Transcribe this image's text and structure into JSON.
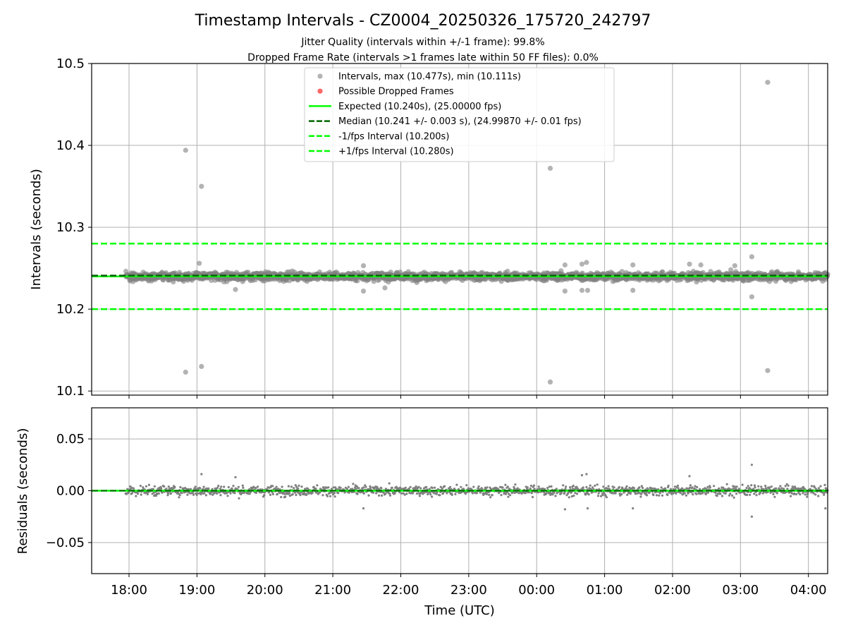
{
  "title": "Timestamp Intervals - CZ0004_20250326_175720_242797",
  "subtitle_1": "Jitter Quality (intervals within +/-1 frame): 99.8%",
  "subtitle_2": "Dropped Frame Rate (intervals >1 frames late within 50 FF files): 0.0%",
  "colors": {
    "points": "#808080",
    "dropped": "#ff0000",
    "expected": "#00ff00",
    "median": "#006400",
    "bounds": "#00ff00",
    "grid": "#b0b0b0"
  },
  "chart_data": [
    {
      "type": "scatter",
      "ylabel": "Intervals (seconds)",
      "ylim": [
        10.095,
        10.5
      ],
      "yticks": [
        10.1,
        10.2,
        10.3,
        10.4,
        10.5
      ],
      "ytick_labels": [
        "10.1",
        "10.2",
        "10.3",
        "10.4",
        "10.5"
      ],
      "grid": true,
      "legend_position": "top-center",
      "legend": [
        {
          "label": "Intervals, max (10.477s), min (10.111s)",
          "kind": "marker",
          "color": "#808080"
        },
        {
          "label": "Possible Dropped Frames",
          "kind": "marker",
          "color": "#ff0000"
        },
        {
          "label": "Expected (10.240s), (25.00000 fps)",
          "kind": "solid",
          "color": "#00ff00"
        },
        {
          "label": "Median (10.241 +/- 0.003 s), (24.99870 +/- 0.01 fps)",
          "kind": "dashed",
          "color": "#006400"
        },
        {
          "label": "-1/fps Interval (10.200s)",
          "kind": "dashed",
          "color": "#00ff00"
        },
        {
          "label": "+1/fps Interval (10.280s)",
          "kind": "dashed",
          "color": "#00ff00"
        }
      ],
      "reference_lines": {
        "expected": 10.24,
        "median": 10.241,
        "lower": 10.2,
        "upper": 10.28
      },
      "baseline": {
        "center": 10.24,
        "spread": 0.005,
        "count": 2400
      },
      "outliers": [
        {
          "x": "18:50",
          "y": 10.394
        },
        {
          "x": "18:50",
          "y": 10.123
        },
        {
          "x": "19:04",
          "y": 10.35
        },
        {
          "x": "19:04",
          "y": 10.13
        },
        {
          "x": "19:02",
          "y": 10.256
        },
        {
          "x": "19:34",
          "y": 10.224
        },
        {
          "x": "21:27",
          "y": 10.253
        },
        {
          "x": "21:27",
          "y": 10.222
        },
        {
          "x": "21:46",
          "y": 10.226
        },
        {
          "x": "00:12",
          "y": 10.372
        },
        {
          "x": "00:12",
          "y": 10.111
        },
        {
          "x": "00:25",
          "y": 10.254
        },
        {
          "x": "00:25",
          "y": 10.222
        },
        {
          "x": "00:40",
          "y": 10.255
        },
        {
          "x": "00:40",
          "y": 10.223
        },
        {
          "x": "00:44",
          "y": 10.257
        },
        {
          "x": "00:45",
          "y": 10.223
        },
        {
          "x": "01:25",
          "y": 10.254
        },
        {
          "x": "01:25",
          "y": 10.223
        },
        {
          "x": "02:15",
          "y": 10.255
        },
        {
          "x": "02:25",
          "y": 10.254
        },
        {
          "x": "02:55",
          "y": 10.253
        },
        {
          "x": "03:10",
          "y": 10.264
        },
        {
          "x": "03:10",
          "y": 10.215
        },
        {
          "x": "03:24",
          "y": 10.477
        },
        {
          "x": "03:24",
          "y": 10.125
        }
      ]
    },
    {
      "type": "scatter",
      "xlabel": "Time (UTC)",
      "ylabel": "Residuals (seconds)",
      "ylim": [
        -0.08,
        0.08
      ],
      "yticks": [
        0.05,
        0.0,
        -0.05
      ],
      "ytick_labels": [
        "0.05",
        "0.00",
        "−0.05"
      ],
      "grid": true,
      "reference_lines": {
        "zero": 0.0
      },
      "baseline": {
        "center": 0.0,
        "spread": 0.005,
        "count": 1500
      },
      "outliers": [
        {
          "x": "19:04",
          "y": 0.016
        },
        {
          "x": "03:10",
          "y": 0.025
        },
        {
          "x": "03:10",
          "y": -0.025
        },
        {
          "x": "00:40",
          "y": 0.015
        },
        {
          "x": "00:44",
          "y": 0.016
        },
        {
          "x": "21:27",
          "y": -0.017
        },
        {
          "x": "00:25",
          "y": -0.018
        },
        {
          "x": "00:45",
          "y": -0.017
        },
        {
          "x": "02:15",
          "y": 0.014
        },
        {
          "x": "19:34",
          "y": 0.013
        },
        {
          "x": "01:25",
          "y": -0.017
        },
        {
          "x": "04:15",
          "y": -0.017
        }
      ]
    }
  ],
  "x_axis": {
    "range": [
      "17:27",
      "04:17"
    ],
    "ticks": [
      "18:00",
      "19:00",
      "20:00",
      "21:00",
      "22:00",
      "23:00",
      "00:00",
      "01:00",
      "02:00",
      "03:00",
      "04:00"
    ],
    "data_start": "17:57"
  }
}
